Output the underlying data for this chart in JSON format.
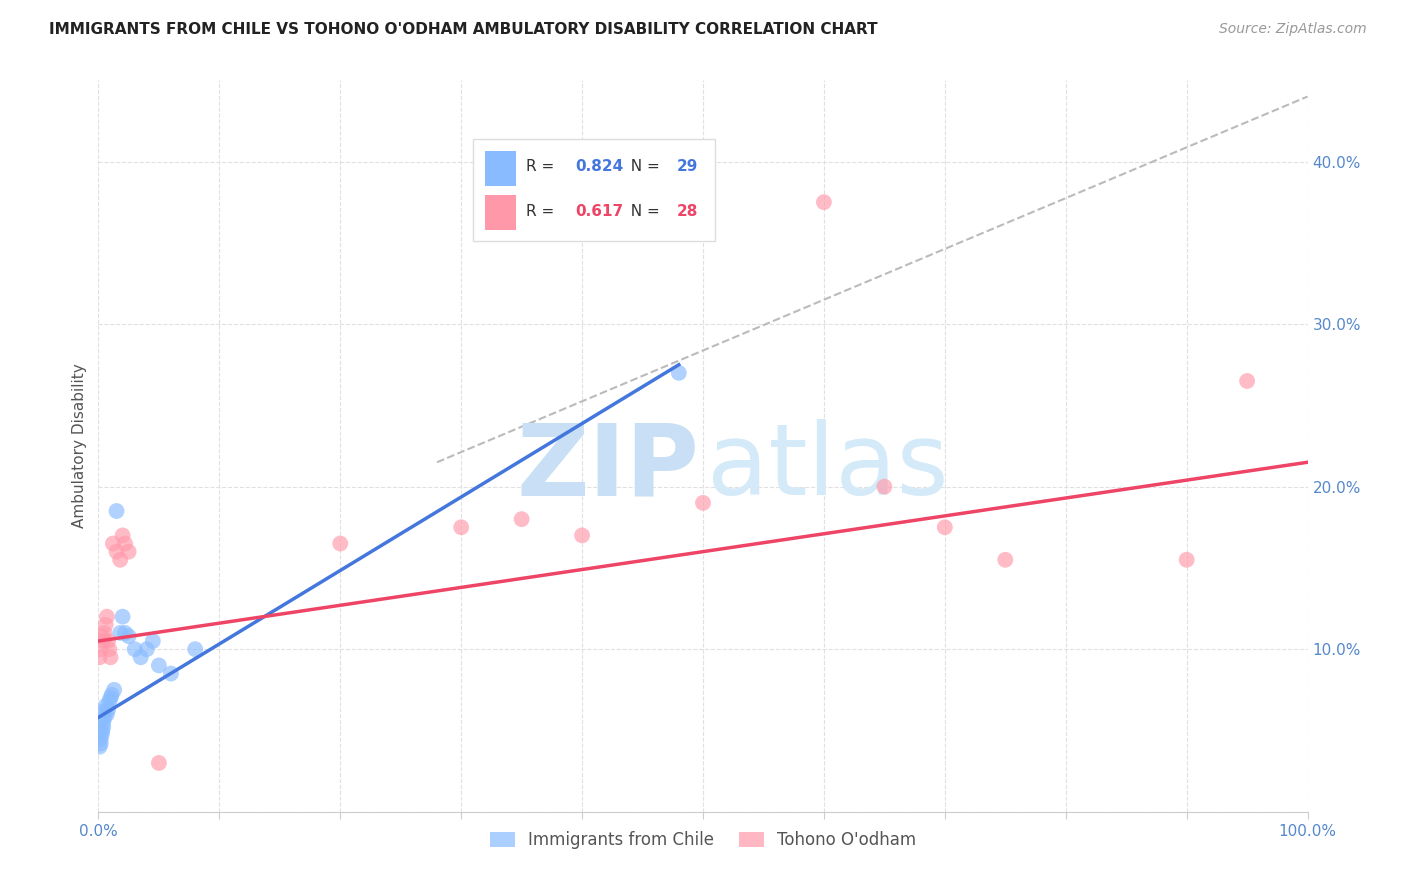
{
  "title": "IMMIGRANTS FROM CHILE VS TOHONO O'ODHAM AMBULATORY DISABILITY CORRELATION CHART",
  "source": "Source: ZipAtlas.com",
  "ylabel": "Ambulatory Disability",
  "xlim": [
    0,
    1.0
  ],
  "ylim": [
    0,
    0.45
  ],
  "xticks": [
    0.0,
    0.1,
    0.2,
    0.3,
    0.4,
    0.5,
    0.6,
    0.7,
    0.8,
    0.9,
    1.0
  ],
  "xtick_labels": [
    "0.0%",
    "",
    "",
    "",
    "",
    "",
    "",
    "",
    "",
    "",
    "100.0%"
  ],
  "ytick_positions": [
    0.0,
    0.1,
    0.2,
    0.3,
    0.4
  ],
  "ytick_labels_right": [
    "",
    "10.0%",
    "20.0%",
    "30.0%",
    "40.0%"
  ],
  "blue_R": "0.824",
  "blue_N": "29",
  "pink_R": "0.617",
  "pink_N": "28",
  "legend_label_blue": "Immigrants from Chile",
  "legend_label_pink": "Tohono O'odham",
  "blue_scatter_x": [
    0.001,
    0.002,
    0.002,
    0.003,
    0.003,
    0.004,
    0.004,
    0.005,
    0.005,
    0.006,
    0.007,
    0.008,
    0.009,
    0.01,
    0.011,
    0.013,
    0.015,
    0.018,
    0.02,
    0.022,
    0.025,
    0.03,
    0.035,
    0.04,
    0.045,
    0.05,
    0.06,
    0.08,
    0.48
  ],
  "blue_scatter_y": [
    0.04,
    0.042,
    0.045,
    0.048,
    0.05,
    0.052,
    0.055,
    0.058,
    0.062,
    0.065,
    0.06,
    0.063,
    0.068,
    0.07,
    0.072,
    0.075,
    0.185,
    0.11,
    0.12,
    0.11,
    0.108,
    0.1,
    0.095,
    0.1,
    0.105,
    0.09,
    0.085,
    0.1,
    0.27
  ],
  "pink_scatter_x": [
    0.001,
    0.002,
    0.003,
    0.004,
    0.005,
    0.006,
    0.007,
    0.008,
    0.009,
    0.01,
    0.012,
    0.015,
    0.018,
    0.02,
    0.022,
    0.025,
    0.05,
    0.2,
    0.3,
    0.35,
    0.4,
    0.5,
    0.6,
    0.65,
    0.7,
    0.75,
    0.9,
    0.95
  ],
  "pink_scatter_y": [
    0.095,
    0.1,
    0.108,
    0.105,
    0.11,
    0.115,
    0.12,
    0.105,
    0.1,
    0.095,
    0.165,
    0.16,
    0.155,
    0.17,
    0.165,
    0.16,
    0.03,
    0.165,
    0.175,
    0.18,
    0.17,
    0.19,
    0.375,
    0.2,
    0.175,
    0.155,
    0.155,
    0.265
  ],
  "blue_line_x": [
    0.0,
    0.48
  ],
  "blue_line_y": [
    0.058,
    0.275
  ],
  "pink_line_x": [
    0.0,
    1.0
  ],
  "pink_line_y": [
    0.105,
    0.215
  ],
  "dashed_line_x": [
    0.28,
    1.0
  ],
  "dashed_line_y": [
    0.215,
    0.44
  ],
  "title_color": "#222222",
  "source_color": "#999999",
  "axis_label_color": "#555555",
  "tick_color_blue": "#5588cc",
  "grid_color": "#e0e0e0",
  "blue_scatter_color": "#88bbff",
  "pink_scatter_color": "#ff99aa",
  "blue_line_color": "#4477dd",
  "pink_line_color": "#ee4466",
  "dashed_line_color": "#bbbbbb",
  "watermark_zip_color": "#c8dff5",
  "watermark_atlas_color": "#d4eaf8",
  "legend_box_color": "#dddddd",
  "legend_R_color_blue": "#4477dd",
  "legend_R_color_pink": "#ee4466",
  "legend_N_color_blue": "#4477dd",
  "legend_N_color_pink": "#ee4466"
}
